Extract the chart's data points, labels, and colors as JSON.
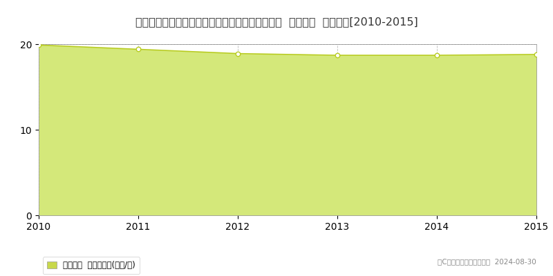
{
  "title": "埼玉県富士見市大字南畑新田字登戸１７２番３外  地価公示  地価推移[2010-2015]",
  "years": [
    2010,
    2011,
    2012,
    2013,
    2014,
    2015
  ],
  "values": [
    19.9,
    19.4,
    18.9,
    18.7,
    18.7,
    18.8
  ],
  "line_color": "#b8cc20",
  "fill_color": "#d4e87a",
  "fill_alpha": 1.0,
  "marker_facecolor": "white",
  "marker_edgecolor": "#b8cc20",
  "background_color": "#ffffff",
  "plot_bg_color": "#f5f5f5",
  "grid_color": "#aaaaaa",
  "title_fontsize": 11.5,
  "tick_fontsize": 10,
  "ylim": [
    0,
    20
  ],
  "yticks": [
    0,
    10,
    20
  ],
  "legend_label": "地価公示  平均嵪単価(万円/嵪)",
  "legend_marker_color": "#c8d84b",
  "copyright_text": "（C）土地価格ドットコム  2024-08-30"
}
